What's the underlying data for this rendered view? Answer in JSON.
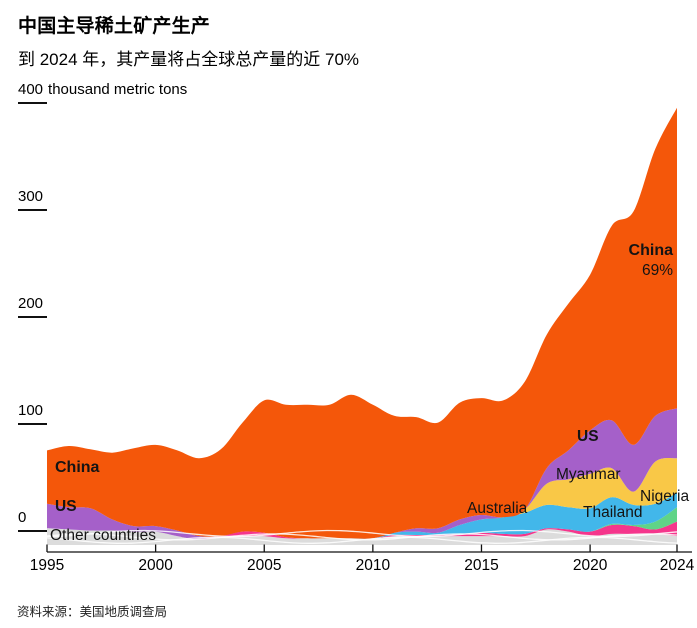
{
  "header": {
    "title": "中国主导稀土矿产生产",
    "subtitle": "到 2024 年，其产量将占全球总产量的近 70%"
  },
  "y_axis": {
    "unit": "thousand metric tons"
  },
  "labels": {
    "china_left": "China",
    "us_left": "US",
    "other_countries": "Other countries",
    "china_right": "China",
    "china_share": "69%",
    "us_right": "US",
    "myanmar": "Myanmar",
    "australia": "Australia",
    "thailand": "Thailand",
    "nigeria": "Nigeria"
  },
  "source": "资料来源：美国地质调查局",
  "chart_data": {
    "type": "area",
    "stacked": true,
    "title": "中国主导稀土矿产生产",
    "subtitle": "到 2024 年，其产量将占全球总产量的近 70%",
    "ylabel": "thousand metric tons",
    "ylim": [
      0,
      400
    ],
    "grid": false,
    "legend": "inline-labels",
    "x_ticks": [
      1995,
      2000,
      2005,
      2010,
      2015,
      2020,
      2024
    ],
    "y_ticks": [
      0,
      100,
      200,
      300,
      400
    ],
    "x": [
      1995,
      1996,
      1997,
      1998,
      1999,
      2000,
      2001,
      2002,
      2003,
      2004,
      2005,
      2006,
      2007,
      2008,
      2009,
      2010,
      2011,
      2012,
      2013,
      2014,
      2015,
      2016,
      2017,
      2018,
      2019,
      2020,
      2021,
      2022,
      2023,
      2024
    ],
    "series": [
      {
        "name": "Other countries",
        "color": "#dcdcdc",
        "values": [
          15,
          14,
          13,
          13,
          12,
          12,
          8,
          5,
          7,
          8,
          8,
          6,
          6,
          6,
          6,
          6,
          8,
          8,
          8,
          8,
          8,
          8,
          8,
          14,
          12,
          8,
          10,
          10,
          10,
          8
        ]
      },
      {
        "name": "Thailand",
        "color": "#f5368c",
        "values": [
          0,
          0,
          0,
          0,
          0,
          0,
          0,
          0,
          1,
          4,
          3,
          1,
          0,
          0,
          0,
          0,
          1,
          1,
          1,
          2,
          3,
          2,
          2,
          1,
          2,
          4,
          8,
          7,
          4,
          13
        ]
      },
      {
        "name": "Nigeria",
        "color": "#5fd487",
        "values": [
          0,
          0,
          0,
          0,
          0,
          0,
          0,
          0,
          0,
          0,
          0,
          0,
          0,
          0,
          0,
          0,
          0,
          0,
          0,
          0,
          0,
          0,
          0,
          0,
          0,
          0,
          1,
          1,
          7,
          13
        ]
      },
      {
        "name": "Australia",
        "color": "#42b7ea",
        "values": [
          0,
          0,
          0,
          0,
          0,
          0,
          0,
          0,
          0,
          0,
          0,
          0,
          0,
          0,
          0,
          0,
          2,
          3,
          2,
          8,
          12,
          15,
          19,
          21,
          20,
          21,
          24,
          18,
          16,
          13
        ]
      },
      {
        "name": "Myanmar",
        "color": "#f9c847",
        "values": [
          0,
          0,
          0,
          0,
          0,
          0,
          0,
          0,
          0,
          0,
          0,
          0,
          0,
          0,
          0,
          0,
          0,
          0,
          0,
          0,
          0,
          0,
          3,
          19,
          25,
          31,
          26,
          12,
          38,
          31
        ]
      },
      {
        "name": "US",
        "color": "#a560c9",
        "values": [
          22,
          20,
          20,
          10,
          5,
          5,
          5,
          3,
          0,
          0,
          0,
          0,
          0,
          0,
          0,
          0,
          0,
          3,
          4,
          5,
          4,
          0,
          0,
          14,
          26,
          39,
          43,
          42,
          41,
          45
        ]
      },
      {
        "name": "China",
        "color": "#f4570a",
        "values": [
          48,
          55,
          53,
          60,
          70,
          73,
          72,
          70,
          78,
          98,
          119,
          119,
          120,
          120,
          129,
          120,
          105,
          100,
          95,
          105,
          105,
          105,
          115,
          120,
          132,
          140,
          175,
          210,
          240,
          270
        ]
      }
    ],
    "annotations": {
      "china_share_2024": "69%"
    }
  }
}
